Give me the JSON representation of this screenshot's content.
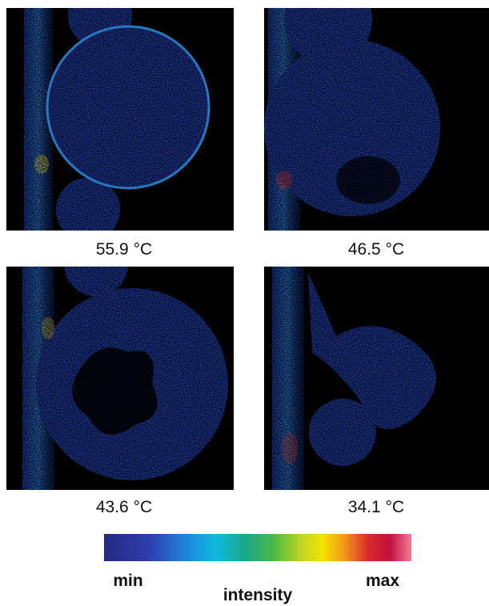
{
  "panels": [
    {
      "label": "55.9 °C"
    },
    {
      "label": "46.5 °C"
    },
    {
      "label": "43.6 °C"
    },
    {
      "label": "34.1 °C"
    }
  ],
  "colorbar": {
    "min_label": "min",
    "max_label": "max",
    "title": "intensity"
  }
}
